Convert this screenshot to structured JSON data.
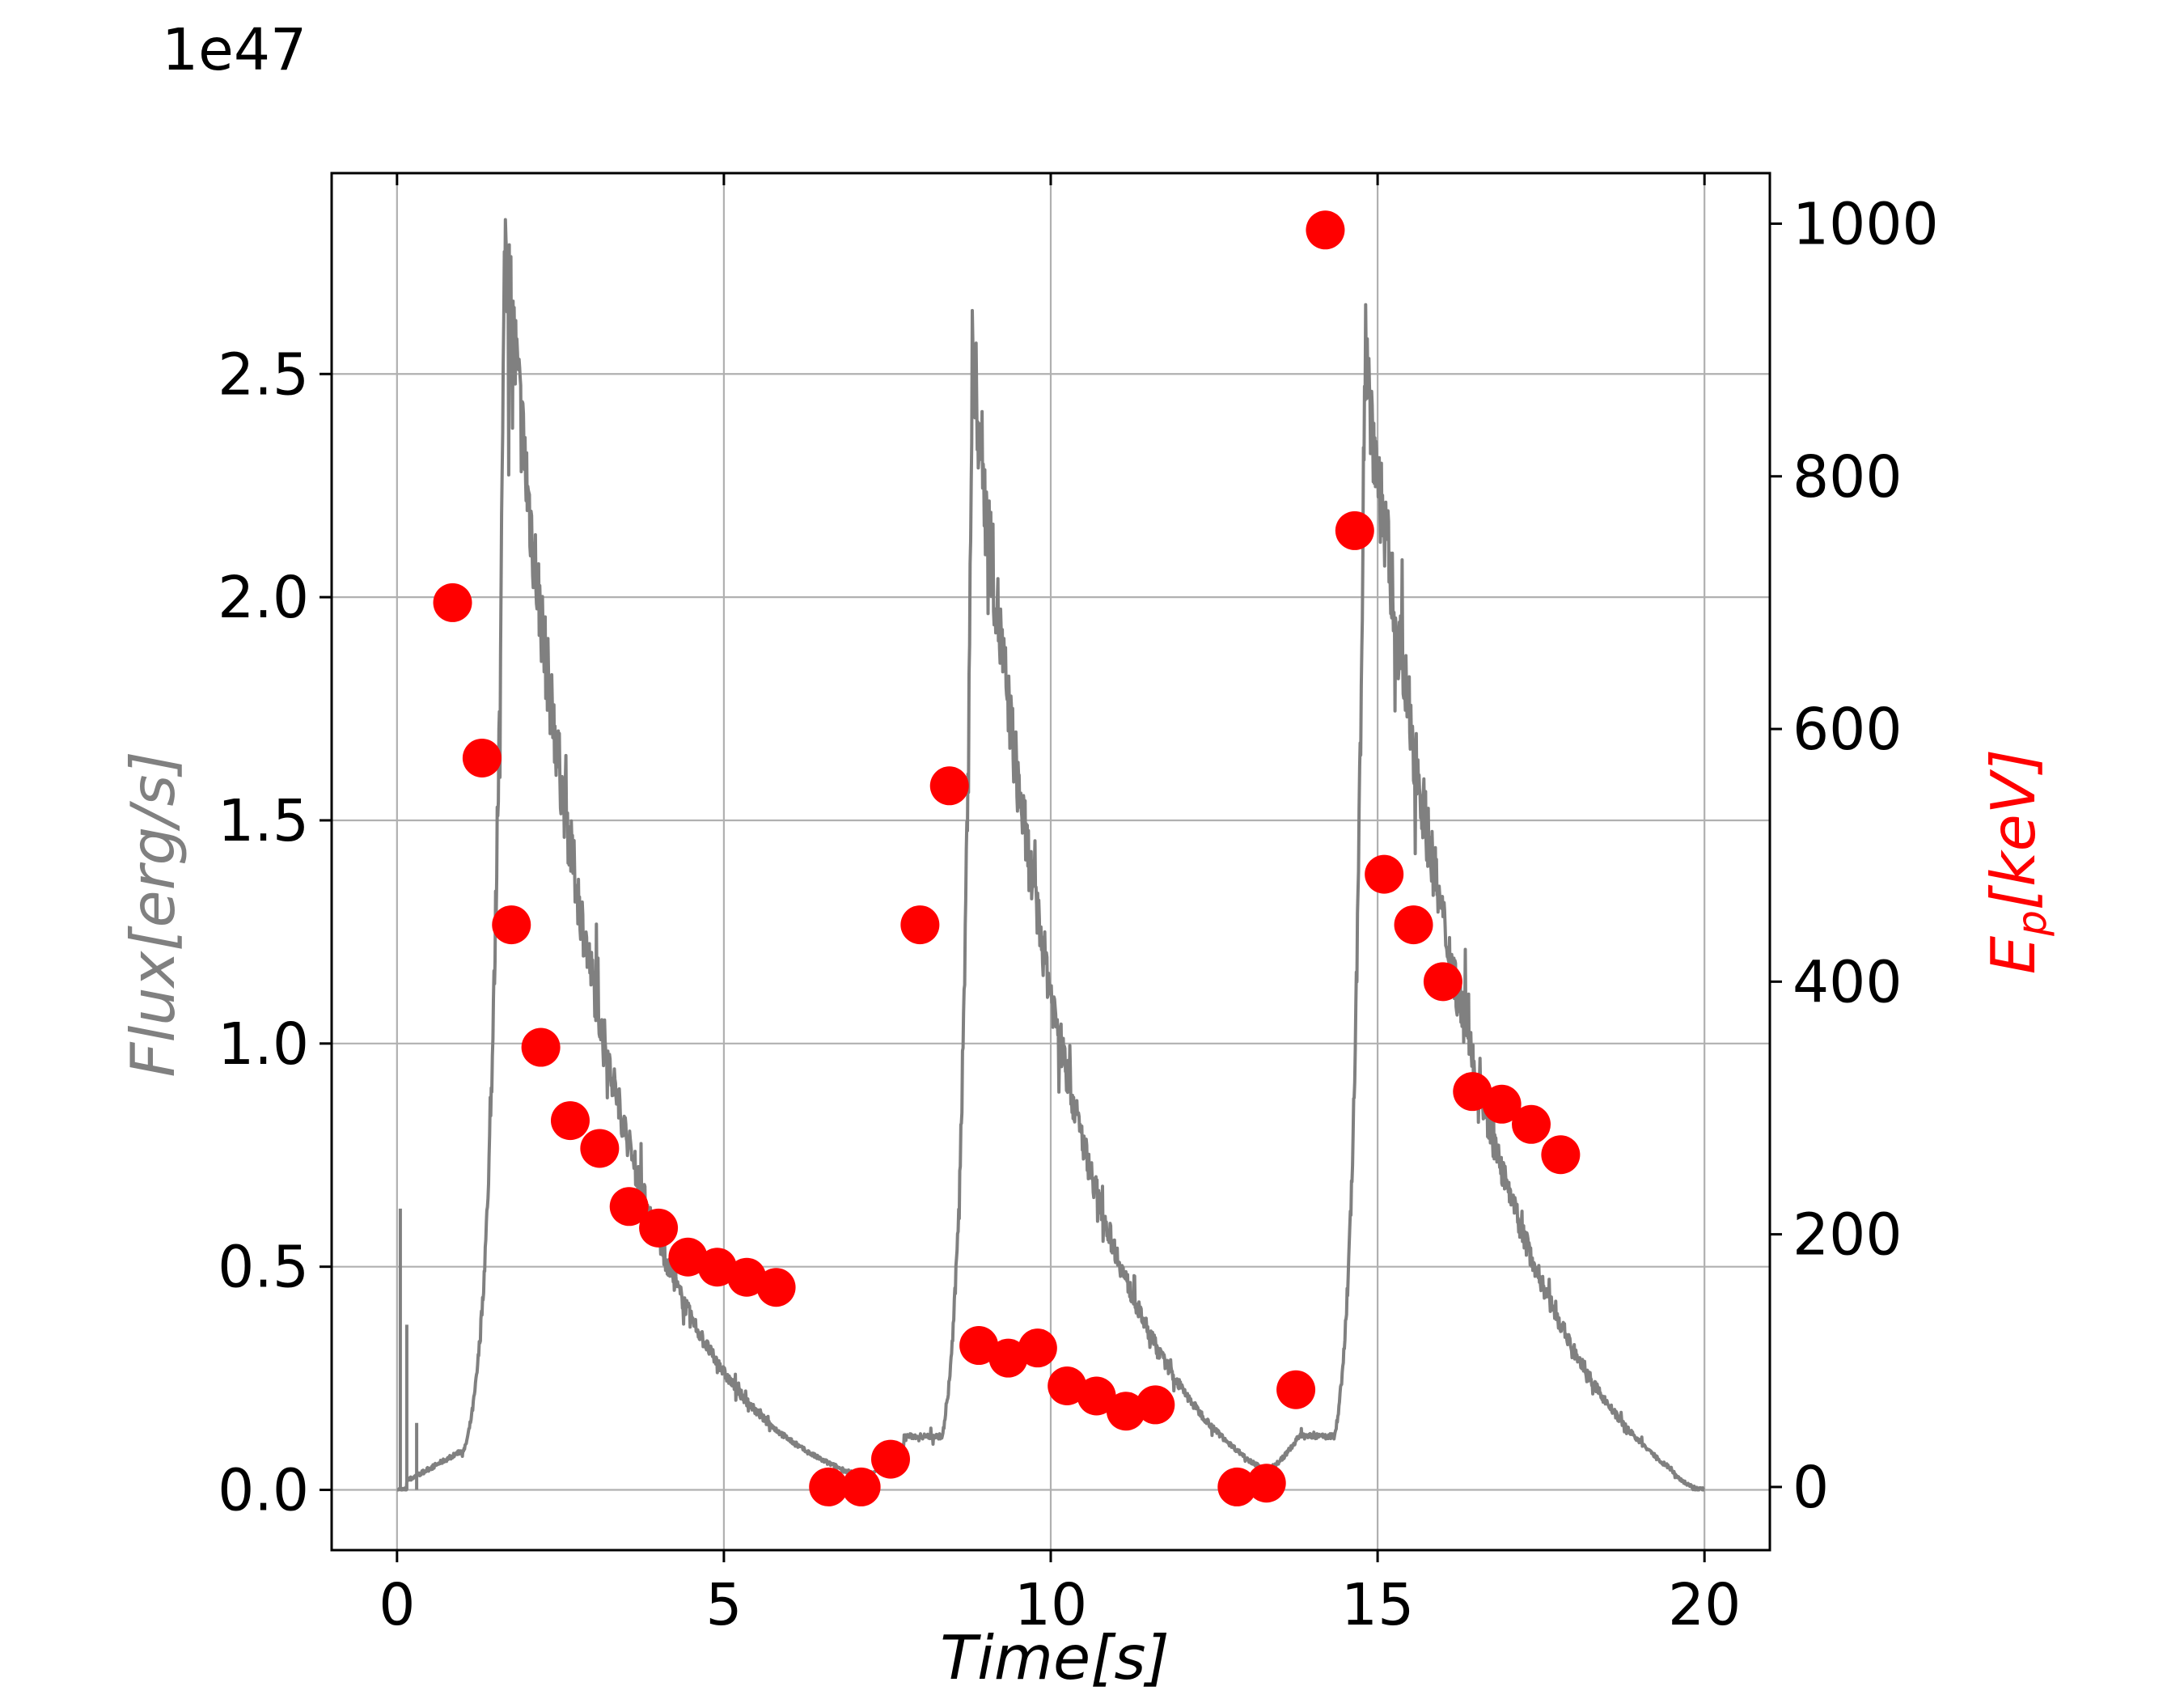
{
  "chart_data": {
    "type": "line",
    "title": "",
    "xlabel": "Time[s]",
    "xlim": [
      -1,
      21
    ],
    "xticks": [
      0,
      5,
      10,
      15,
      20
    ],
    "xtick_labels": [
      "0",
      "5",
      "10",
      "15",
      "20"
    ],
    "grid": true,
    "left_axis": {
      "label": "Flux[erg/s]",
      "offset_text": "1e47",
      "ylim": [
        -0.135,
        2.95
      ],
      "ticks": [
        0.0,
        0.5,
        1.0,
        1.5,
        2.0,
        2.5
      ],
      "tick_labels": [
        "0.0",
        "0.5",
        "1.0",
        "1.5",
        "2.0",
        "2.5"
      ],
      "color": "#808080"
    },
    "right_axis": {
      "label": "E_p[keV]",
      "label_main": "E",
      "label_sub": "p",
      "label_tail": "[keV]",
      "ylim": [
        -50,
        1040
      ],
      "ticks": [
        0,
        200,
        400,
        600,
        800,
        1000
      ],
      "tick_labels": [
        "0",
        "200",
        "400",
        "600",
        "800",
        "1000"
      ],
      "color": "#ff0000"
    },
    "series": [
      {
        "axis": "left",
        "style": "line",
        "color": "#808080",
        "pulses": [
          {
            "start": 0.15,
            "peak": 1.65,
            "peak_value": 2.82,
            "end": 7.75,
            "end_value": 0.1,
            "rise_width": 0.18,
            "decay": 2.0
          },
          {
            "start": 7.75,
            "peak": 8.8,
            "peak_value": 2.55,
            "end": 13.8,
            "end_value": 0.12,
            "rise_width": 0.15,
            "decay": 2.1
          },
          {
            "start": 13.8,
            "peak": 14.8,
            "peak_value": 2.55,
            "end": 20.0,
            "end_value": 0.0,
            "rise_width": 0.15,
            "decay": 2.8
          }
        ],
        "initial_spikes": [
          [
            0.05,
            0.63
          ],
          [
            0.15,
            0.37
          ],
          [
            0.3,
            0.15
          ]
        ]
      },
      {
        "axis": "right",
        "style": "scatter",
        "color": "#ff0000",
        "x": [
          0.85,
          1.3,
          1.75,
          2.2,
          2.65,
          3.1,
          3.55,
          4.0,
          4.45,
          4.9,
          5.35,
          5.8,
          6.6,
          7.1,
          7.55,
          8.0,
          8.45,
          8.9,
          9.35,
          9.8,
          10.25,
          10.7,
          11.15,
          11.6,
          12.85,
          13.3,
          13.75,
          14.2,
          14.65,
          15.1,
          15.55,
          16.0,
          16.45,
          16.9,
          17.35,
          17.8
        ],
        "y": [
          700,
          577,
          445,
          348,
          290,
          268,
          222,
          205,
          182,
          174,
          166,
          158,
          0,
          0,
          22,
          445,
          555,
          112,
          102,
          110,
          80,
          72,
          60,
          65,
          0,
          3,
          77,
          995,
          757,
          485,
          445,
          400,
          313,
          303,
          287,
          263
        ]
      }
    ]
  }
}
